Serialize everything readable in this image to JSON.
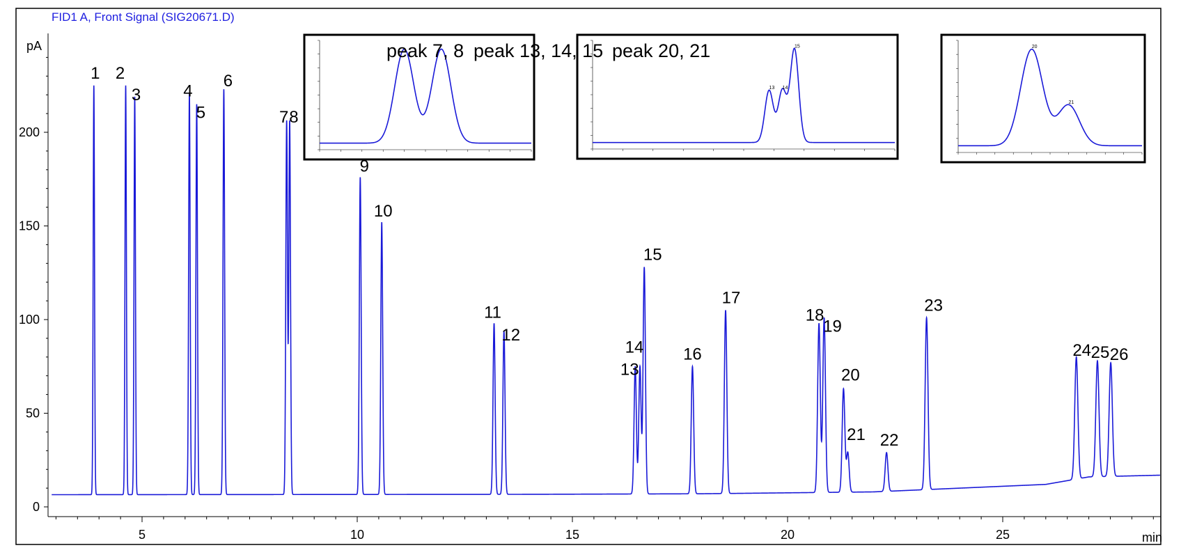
{
  "chart_data": {
    "type": "line",
    "title": "FID1 A, Front Signal (SIG20671.D)",
    "ylabel": "pA",
    "xlabel": "min",
    "xlim": [
      2.9,
      28.8
    ],
    "ylim": [
      -5,
      252
    ],
    "x_ticks": [
      5,
      10,
      15,
      20,
      25
    ],
    "y_ticks": [
      0,
      50,
      100,
      150,
      200
    ],
    "baseline": [
      [
        2.9,
        6.5
      ],
      [
        14,
        6.7
      ],
      [
        18,
        7
      ],
      [
        22,
        8
      ],
      [
        26,
        12
      ],
      [
        27,
        16
      ],
      [
        28.8,
        17
      ]
    ],
    "peaks": [
      {
        "label": "1",
        "rt": 3.88,
        "height": 225
      },
      {
        "label": "2",
        "rt": 4.62,
        "height": 225
      },
      {
        "label": "3",
        "rt": 4.83,
        "height": 219
      },
      {
        "label": "4",
        "rt": 6.1,
        "height": 221
      },
      {
        "label": "5",
        "rt": 6.27,
        "height": 215
      },
      {
        "label": "6",
        "rt": 6.9,
        "height": 223
      },
      {
        "label": "7",
        "rt": 8.36,
        "height": 206
      },
      {
        "label": "8",
        "rt": 8.43,
        "height": 206
      },
      {
        "label": "9",
        "rt": 10.07,
        "height": 176
      },
      {
        "label": "10",
        "rt": 10.57,
        "height": 152
      },
      {
        "label": "11",
        "rt": 13.18,
        "height": 98
      },
      {
        "label": "12",
        "rt": 13.41,
        "height": 94
      },
      {
        "label": "13",
        "rt": 16.46,
        "height": 75
      },
      {
        "label": "14",
        "rt": 16.57,
        "height": 75
      },
      {
        "label": "15",
        "rt": 16.67,
        "height": 128
      },
      {
        "label": "16",
        "rt": 17.79,
        "height": 75
      },
      {
        "label": "17",
        "rt": 18.56,
        "height": 105
      },
      {
        "label": "18",
        "rt": 20.73,
        "height": 98
      },
      {
        "label": "19",
        "rt": 20.85,
        "height": 101
      },
      {
        "label": "20",
        "rt": 21.3,
        "height": 63
      },
      {
        "label": "21",
        "rt": 21.4,
        "height": 29
      },
      {
        "label": "22",
        "rt": 22.3,
        "height": 29
      },
      {
        "label": "23",
        "rt": 23.23,
        "height": 101
      },
      {
        "label": "24",
        "rt": 26.71,
        "height": 80
      },
      {
        "label": "25",
        "rt": 27.2,
        "height": 78
      },
      {
        "label": "26",
        "rt": 27.51,
        "height": 77
      }
    ],
    "annotations": [
      "peak 7, 8",
      "peak 13, 14, 15",
      "peak 20, 21"
    ],
    "insets": [
      {
        "name": "peak 7, 8",
        "xlim": [
          8.2,
          8.6
        ],
        "peaks": [
          {
            "rt": 8.36,
            "height": 206
          },
          {
            "rt": 8.43,
            "height": 206
          }
        ]
      },
      {
        "name": "peak 13, 14, 15",
        "xlim": [
          15,
          17.5
        ],
        "peak_labels": [
          "13",
          "14",
          "15"
        ],
        "peaks": [
          {
            "rt": 16.46,
            "height": 75
          },
          {
            "rt": 16.57,
            "height": 75
          },
          {
            "rt": 16.67,
            "height": 128
          }
        ]
      },
      {
        "name": "peak 20, 21",
        "xlim": [
          21.1,
          21.6
        ],
        "peak_labels": [
          "20",
          "21"
        ],
        "peaks": [
          {
            "rt": 21.3,
            "height": 63
          },
          {
            "rt": 21.4,
            "height": 29
          }
        ]
      }
    ]
  },
  "colors": {
    "signal": "#1a1ad8",
    "frame": "#000000",
    "title": "#2020e0"
  }
}
